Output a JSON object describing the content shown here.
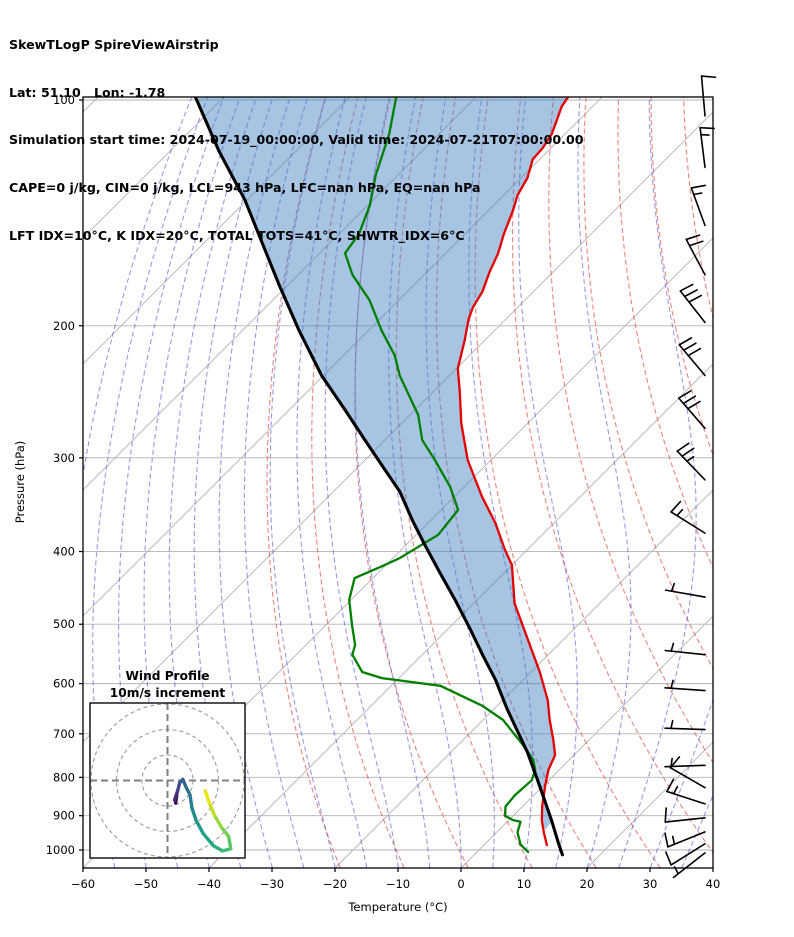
{
  "header": {
    "line1": "SkewTLogP SpireViewAirstrip",
    "line2": "Lat: 51.10   Lon: -1.78",
    "line3": "Simulation start time: 2024-07-19_00:00:00, Valid time: 2024-07-21T07:00:00.00",
    "line4": "CAPE=0 j/kg, CIN=0 j/kg, LCL=943 hPa, LFC=nan hPa, EQ=nan hPa",
    "line5": "LFT IDX=10°C, K IDX=20°C, TOTAL TOTS=41°C, SHWTR_IDX=6°C"
  },
  "chart_data": {
    "type": "line",
    "subtype": "skewT-logP sounding",
    "title": "SkewTLogP SpireViewAirstrip",
    "xlabel": "Temperature (°C)",
    "ylabel": "Pressure (hPa)",
    "xlim": [
      -60,
      40
    ],
    "pressure_display_range": [
      100,
      1056
    ],
    "x_ticks": [
      -60,
      -50,
      -40,
      -30,
      -20,
      -10,
      0,
      10,
      20,
      30,
      40
    ],
    "p_ticks": [
      100,
      200,
      300,
      400,
      500,
      600,
      700,
      800,
      900,
      1000
    ],
    "skew_deg": 45,
    "grid": {
      "isotherms_C": {
        "start": -180,
        "end": 40,
        "step": 20
      },
      "dry_adiabats_K": {
        "start": 250,
        "end": 440,
        "step": 10
      },
      "moist_adiabats_startC": {
        "start": -60,
        "end": 40,
        "step": 5
      }
    },
    "style": {
      "isotherm_color": "#b2b2b2",
      "pgrid_color": "#b2b2b2",
      "dry_adiabat_color": "rgba(222,55,50,0.62)",
      "moist_adiabat_color": "rgba(62,72,214,0.55)",
      "shade_color": "rgba(60,125,190,0.45)",
      "spine_color": "#000000",
      "barb_color": "#000000"
    },
    "series": [
      {
        "name": "temperature",
        "color": "#e50000",
        "width": 2.3,
        "points_pT": [
          [
            985,
            10.0
          ],
          [
            949,
            7.6
          ],
          [
            912,
            5.2
          ],
          [
            871,
            2.9
          ],
          [
            819,
            0.2
          ],
          [
            782,
            -1.7
          ],
          [
            747,
            -3.0
          ],
          [
            713,
            -5.7
          ],
          [
            671,
            -9.4
          ],
          [
            631,
            -12.9
          ],
          [
            579,
            -18.6
          ],
          [
            497,
            -29.4
          ],
          [
            469,
            -33.5
          ],
          [
            417,
            -40.0
          ],
          [
            398,
            -43.5
          ],
          [
            366,
            -49.4
          ],
          [
            338,
            -55.6
          ],
          [
            302,
            -63.7
          ],
          [
            270,
            -70.5
          ],
          [
            244,
            -76.0
          ],
          [
            228,
            -79.8
          ],
          [
            209,
            -83.2
          ],
          [
            196,
            -85.9
          ],
          [
            189,
            -87.1
          ],
          [
            180,
            -88.1
          ],
          [
            170,
            -90.0
          ],
          [
            160,
            -91.7
          ],
          [
            151,
            -93.8
          ],
          [
            140,
            -96.2
          ],
          [
            134,
            -97.8
          ],
          [
            127,
            -99.0
          ],
          [
            120,
            -101.1
          ],
          [
            116,
            -101.3
          ],
          [
            111,
            -102.1
          ],
          [
            102,
            -104.9
          ],
          [
            99,
            -105.4
          ]
        ]
      },
      {
        "name": "dewpoint",
        "color": "#007f00",
        "width": 2.3,
        "points_pT": [
          [
            1006,
            8.1
          ],
          [
            983,
            5.7
          ],
          [
            947,
            3.3
          ],
          [
            917,
            2.1
          ],
          [
            912,
            0.6
          ],
          [
            900,
            -1.3
          ],
          [
            875,
            -2.7
          ],
          [
            845,
            -3.0
          ],
          [
            807,
            -2.7
          ],
          [
            782,
            -3.8
          ],
          [
            758,
            -5.7
          ],
          [
            722,
            -10.0
          ],
          [
            671,
            -16.8
          ],
          [
            642,
            -22.4
          ],
          [
            604,
            -32.2
          ],
          [
            590,
            -42.7
          ],
          [
            579,
            -46.8
          ],
          [
            549,
            -51.1
          ],
          [
            533,
            -52.2
          ],
          [
            501,
            -55.9
          ],
          [
            464,
            -60.3
          ],
          [
            434,
            -62.9
          ],
          [
            417,
            -60.2
          ],
          [
            408,
            -58.9
          ],
          [
            380,
            -56.5
          ],
          [
            352,
            -57.3
          ],
          [
            328,
            -62.2
          ],
          [
            302,
            -68.9
          ],
          [
            284,
            -74.1
          ],
          [
            263,
            -78.7
          ],
          [
            233,
            -87.9
          ],
          [
            219,
            -91.9
          ],
          [
            203,
            -97.9
          ],
          [
            185,
            -104.6
          ],
          [
            171,
            -111.4
          ],
          [
            160,
            -116.0
          ],
          [
            151,
            -116.8
          ],
          [
            138,
            -119.7
          ],
          [
            126,
            -123.5
          ],
          [
            111,
            -127.9
          ],
          [
            99,
            -132.7
          ]
        ]
      },
      {
        "name": "parcel",
        "color": "#000000",
        "width": 3.1,
        "points_pT": [
          [
            1015,
            14.0
          ],
          [
            976,
            11.3
          ],
          [
            917,
            7.1
          ],
          [
            858,
            2.5
          ],
          [
            800,
            -2.4
          ],
          [
            740,
            -7.9
          ],
          [
            692,
            -13.0
          ],
          [
            647,
            -18.1
          ],
          [
            593,
            -24.4
          ],
          [
            550,
            -30.3
          ],
          [
            506,
            -36.7
          ],
          [
            464,
            -43.5
          ],
          [
            427,
            -50.2
          ],
          [
            392,
            -57.0
          ],
          [
            363,
            -63.0
          ],
          [
            333,
            -69.4
          ],
          [
            309,
            -75.9
          ],
          [
            284,
            -83.2
          ],
          [
            259,
            -91.1
          ],
          [
            233,
            -100.3
          ],
          [
            203,
            -111.0
          ],
          [
            176,
            -121.6
          ],
          [
            136,
            -140.3
          ],
          [
            117,
            -152.2
          ],
          [
            99,
            -164.6
          ]
        ]
      }
    ],
    "shading": {
      "between": [
        "parcel",
        "temperature"
      ],
      "max_pressure": 940,
      "join_pT": [
        940,
        7.3
      ]
    },
    "wind_barbs": {
      "units": "kt (full=10, half=5)",
      "barbs_p_angle_full_half": [
        [
          105,
          95,
          1,
          0
        ],
        [
          123,
          97,
          1,
          1
        ],
        [
          147,
          110,
          1,
          1
        ],
        [
          171,
          118,
          2,
          0
        ],
        [
          198,
          128,
          3,
          0
        ],
        [
          233,
          130,
          3,
          0
        ],
        [
          274,
          131,
          3,
          0
        ],
        [
          321,
          134,
          2,
          1
        ],
        [
          378,
          148,
          1,
          1
        ],
        [
          460,
          170,
          0,
          1
        ],
        [
          549,
          174,
          0,
          1
        ],
        [
          613,
          176,
          0,
          1
        ],
        [
          691,
          178,
          0,
          1
        ],
        [
          771,
          182,
          0,
          1
        ],
        [
          826,
          150,
          1,
          0
        ],
        [
          868,
          162,
          1,
          1
        ],
        [
          906,
          186,
          1,
          0
        ],
        [
          946,
          202,
          1,
          1
        ],
        [
          981,
          212,
          1,
          0
        ],
        [
          1009,
          218,
          0,
          1
        ]
      ]
    },
    "inset_hodograph": {
      "title": "Wind Profile",
      "subtitle": "10m/s increment",
      "rings_ms": [
        10,
        20,
        30
      ],
      "trace_uv_ms": [
        [
          3.2,
          -8.8
        ],
        [
          3.6,
          -6.0
        ],
        [
          2.8,
          -7.6
        ],
        [
          4.0,
          -4.0
        ],
        [
          4.8,
          -0.8
        ],
        [
          6.0,
          0.4
        ],
        [
          7.2,
          -2.4
        ],
        [
          8.8,
          -5.6
        ],
        [
          9.6,
          -10.8
        ],
        [
          11.2,
          -15.6
        ],
        [
          14.0,
          -20.8
        ],
        [
          18.0,
          -25.6
        ],
        [
          21.6,
          -27.6
        ],
        [
          24.8,
          -26.8
        ],
        [
          24.0,
          -22.0
        ],
        [
          21.2,
          -18.4
        ],
        [
          18.4,
          -13.6
        ],
        [
          16.4,
          -8.8
        ],
        [
          14.8,
          -4.0
        ]
      ],
      "viridis_stops": [
        "#440154",
        "#471063",
        "#472a7a",
        "#414487",
        "#3b528b",
        "#355f8d",
        "#2f6c8e",
        "#2a788e",
        "#25848e",
        "#21918c",
        "#1e9c89",
        "#22a884",
        "#2fb47c",
        "#44bf70",
        "#5ec962",
        "#7ad151",
        "#9bd93c",
        "#c2df23",
        "#e8e419"
      ]
    }
  }
}
